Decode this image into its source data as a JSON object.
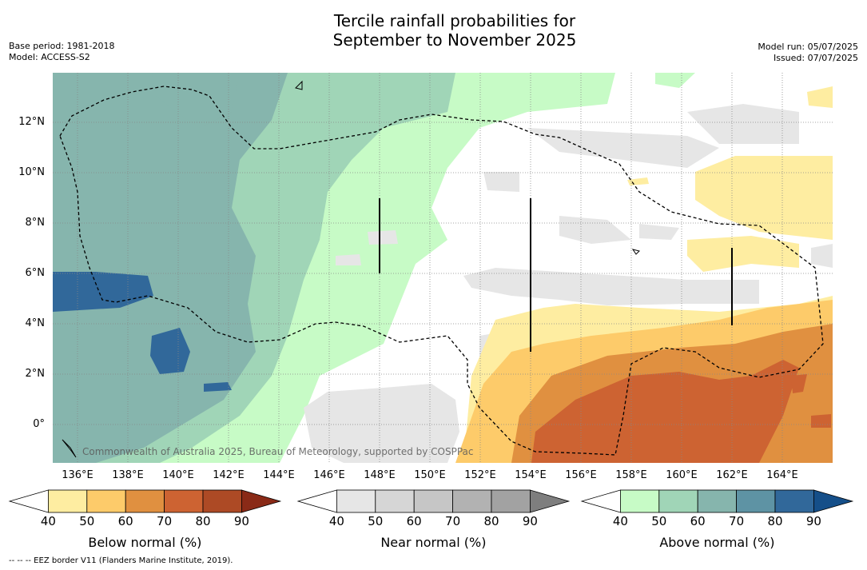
{
  "title_line1": "Tercile rainfall probabilities for",
  "title_line2": "September to November 2025",
  "meta_left": {
    "base_period": "Base period: 1981-2018",
    "model": "Model: ACCESS-S2"
  },
  "meta_right": {
    "model_run": "Model run: 05/07/2025",
    "issued": "Issued: 07/07/2025"
  },
  "lat_labels": [
    "12°N",
    "10°N",
    "8°N",
    "6°N",
    "4°N",
    "2°N",
    "0°"
  ],
  "lon_labels": [
    "136°E",
    "138°E",
    "140°E",
    "142°E",
    "144°E",
    "146°E",
    "148°E",
    "150°E",
    "152°E",
    "154°E",
    "156°E",
    "158°E",
    "160°E",
    "162°E",
    "164°E"
  ],
  "copyright": "Commonwealth of Australia 2025, Bureau of Meteorology, supported by COSPPac",
  "colorbars": [
    {
      "label": "Below normal (%)",
      "ticks": [
        "40",
        "50",
        "60",
        "70",
        "80",
        "90"
      ],
      "colors": [
        "#ffffff",
        "#feeda1",
        "#fdcb6a",
        "#e09040",
        "#cd6332",
        "#ad4a25",
        "#8a2a17"
      ]
    },
    {
      "label": "Near normal (%)",
      "ticks": [
        "40",
        "50",
        "60",
        "70",
        "80",
        "90"
      ],
      "colors": [
        "#ffffff",
        "#e6e6e6",
        "#d6d6d6",
        "#c6c6c6",
        "#b2b2b2",
        "#a2a2a2",
        "#7e7e7e"
      ]
    },
    {
      "label": "Above normal (%)",
      "ticks": [
        "40",
        "50",
        "60",
        "70",
        "80",
        "90"
      ],
      "colors": [
        "#ffffff",
        "#c7fbc6",
        "#a0d5b7",
        "#86b5ad",
        "#5e93a4",
        "#31689a",
        "#154f89"
      ]
    }
  ],
  "footer": "--  --  -- EEZ border V11 (Flanders Marine Institute, 2019)."
}
